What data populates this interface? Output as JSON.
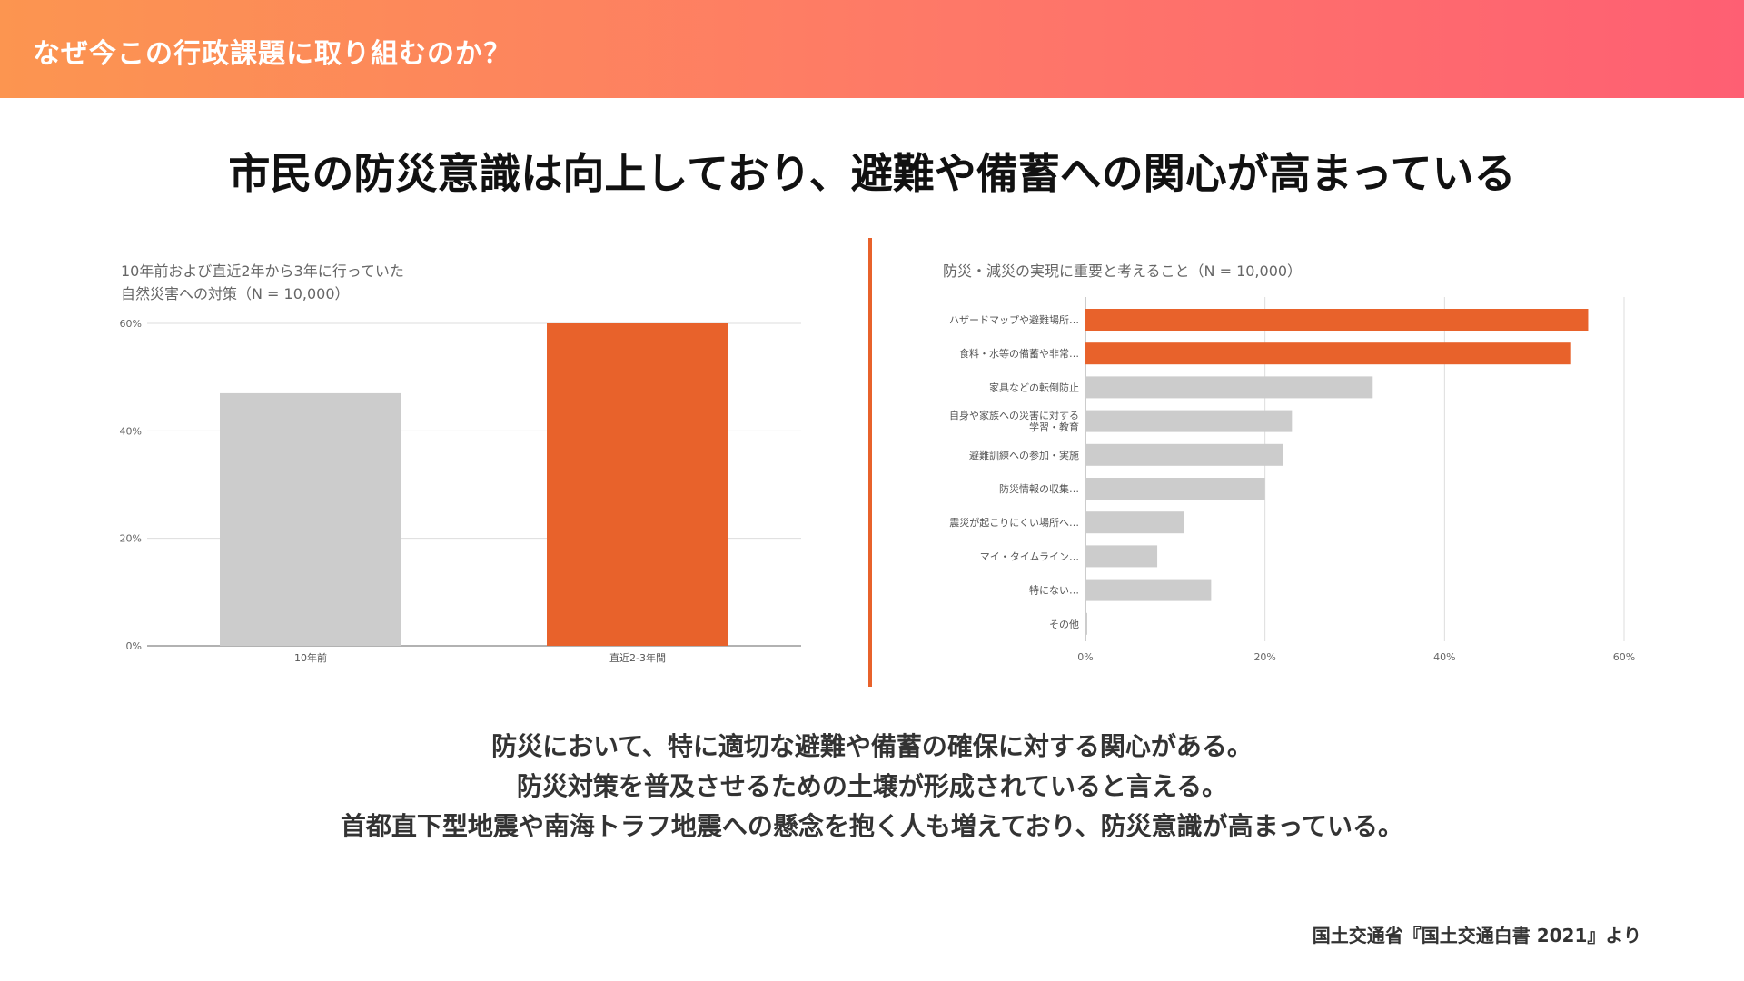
{
  "header": {
    "title": "なぜ今この行政課題に取り組むのか？"
  },
  "headline": "市民の防災意識は向上しており、避難や備蓄への関心が高まっている",
  "colors": {
    "accent": "#e8622b",
    "neutral": "#cccccc",
    "header_gradient_start": "#fc9550",
    "header_gradient_end": "#fe5f73"
  },
  "chart_data": [
    {
      "type": "bar",
      "title_lines": [
        "10年前および直近2年から3年に行っていた",
        "自然災害への対策（N = 10,000）"
      ],
      "categories": [
        "10年前",
        "直近2-3年間"
      ],
      "values": [
        47,
        60
      ],
      "highlight": [
        false,
        true
      ],
      "yticks": [
        "0%",
        "20%",
        "40%",
        "60%"
      ],
      "ylim": [
        0,
        60
      ],
      "grid": true
    },
    {
      "type": "bar",
      "orientation": "horizontal",
      "title": "防災・減災の実現に重要と考えること（N = 10,000）",
      "categories": [
        "ハザードマップや避難場所…",
        "食料・水等の備蓄や非常…",
        "家具などの転倒防止",
        "自身や家族への災害に対する\n学習・教育",
        "避難訓練への参加・実施",
        "防災情報の収集…",
        "震災が起こりにくい場所へ…",
        "マイ・タイムライン…",
        "特にない…",
        "その他"
      ],
      "values": [
        56,
        54,
        32,
        23,
        22,
        20,
        11,
        8,
        14,
        0.2
      ],
      "highlight": [
        true,
        true,
        false,
        false,
        false,
        false,
        false,
        false,
        false,
        false
      ],
      "xticks": [
        "0%",
        "20%",
        "40%",
        "60%"
      ],
      "xlim": [
        0,
        60
      ],
      "grid": true
    }
  ],
  "summary_lines": [
    "防災において、特に適切な避難や備蓄の確保に対する関心がある。",
    "防災対策を普及させるための土壌が形成されていると言える。",
    "首都直下型地震や南海トラフ地震への懸念を抱く人も増えており、防災意識が高まっている。"
  ],
  "source": "国土交通省『国土交通白書 2021』より"
}
